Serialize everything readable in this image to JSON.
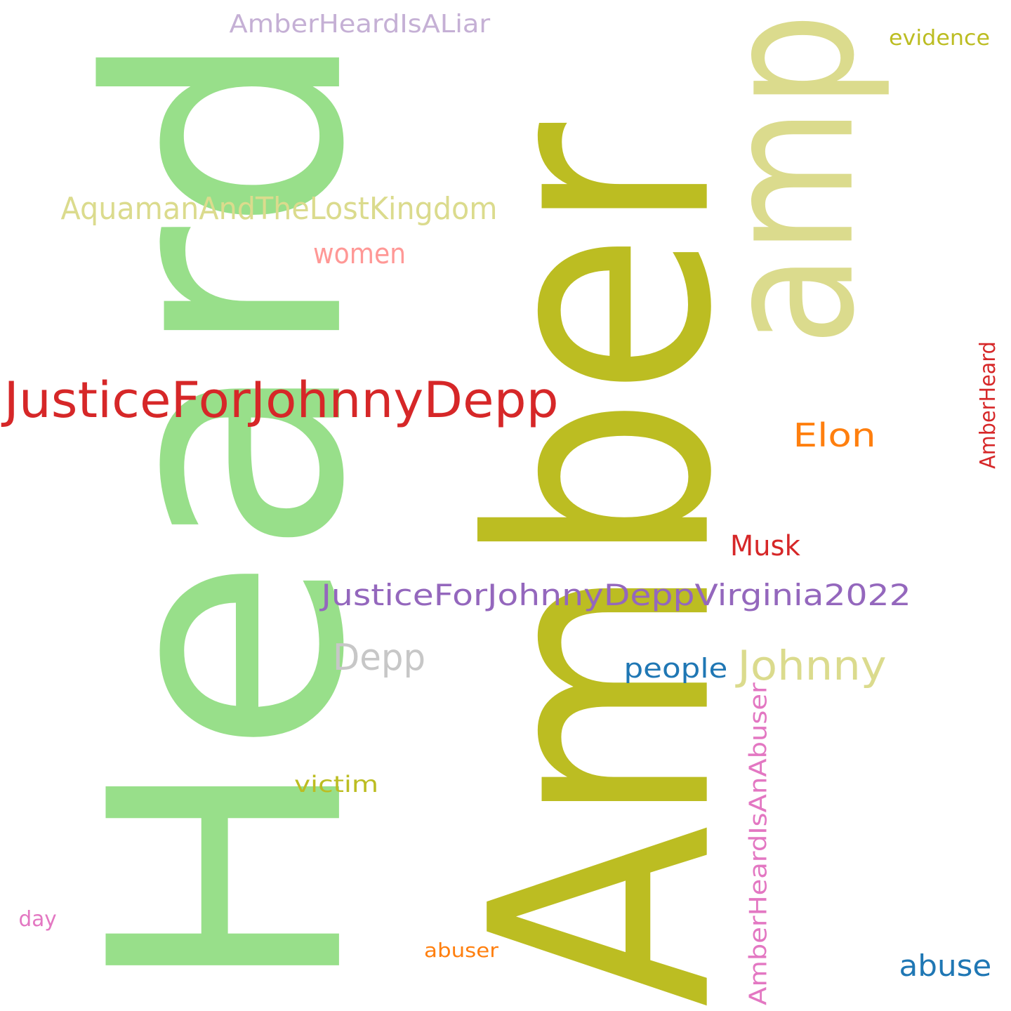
{
  "words": [
    {
      "id": "heard",
      "text": "Heard",
      "color": "#98df8a",
      "orientation": "vertical"
    },
    {
      "id": "amber",
      "text": "Amber",
      "color": "#bcbd22",
      "orientation": "vertical"
    },
    {
      "id": "amp",
      "text": "amp",
      "color": "#dbdb8d",
      "orientation": "vertical"
    },
    {
      "id": "justice-for-johnny-depp",
      "text": "JusticeForJohnnyDepp",
      "color": "#d62728",
      "orientation": "horizontal"
    },
    {
      "id": "aquaman",
      "text": "AquamanAndTheLostKingdom",
      "color": "#dbdb8d",
      "orientation": "horizontal"
    },
    {
      "id": "amber-heard-is-a-liar",
      "text": "AmberHeardIsALiar",
      "color": "#c5b0d5",
      "orientation": "horizontal"
    },
    {
      "id": "women",
      "text": "women",
      "color": "#ff9896",
      "orientation": "horizontal"
    },
    {
      "id": "evidence",
      "text": "evidence",
      "color": "#bcbd22",
      "orientation": "horizontal"
    },
    {
      "id": "elon",
      "text": "Elon",
      "color": "#ff7f0e",
      "orientation": "horizontal"
    },
    {
      "id": "amber-heard-small",
      "text": "AmberHeard",
      "color": "#d62728",
      "orientation": "vertical"
    },
    {
      "id": "musk",
      "text": "Musk",
      "color": "#d62728",
      "orientation": "horizontal"
    },
    {
      "id": "justice-virginia",
      "text": "JusticeForJohnnyDeppVirginia2022",
      "color": "#9467bd",
      "orientation": "horizontal"
    },
    {
      "id": "depp",
      "text": "Depp",
      "color": "#c7c7c7",
      "orientation": "horizontal"
    },
    {
      "id": "johnny",
      "text": "Johnny",
      "color": "#dbdb8d",
      "orientation": "horizontal"
    },
    {
      "id": "people",
      "text": "people",
      "color": "#1f77b4",
      "orientation": "horizontal"
    },
    {
      "id": "amber-heard-is-an-abuser",
      "text": "AmberHeardIsAnAbuser",
      "color": "#e377c2",
      "orientation": "vertical"
    },
    {
      "id": "victim",
      "text": "victim",
      "color": "#bcbd22",
      "orientation": "horizontal"
    },
    {
      "id": "day",
      "text": "day",
      "color": "#e377c2",
      "orientation": "horizontal"
    },
    {
      "id": "abuser",
      "text": "abuser",
      "color": "#ff7f0e",
      "orientation": "horizontal"
    },
    {
      "id": "abuse",
      "text": "abuse",
      "color": "#1f77b4",
      "orientation": "horizontal"
    }
  ]
}
